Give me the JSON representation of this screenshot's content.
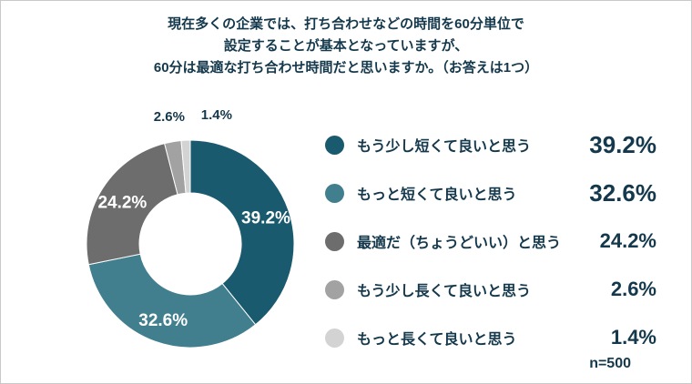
{
  "title": {
    "line1": "現在多くの企業では、打ち合わせなどの時間を60分単位で",
    "line2": "設定することが基本となっていますが、",
    "line3": "60分は最適な打ち合わせ時間だと思いますか。（お答えは1つ）"
  },
  "sample_size": "n=500",
  "chart_data": {
    "type": "pie",
    "donut": true,
    "title": "現在多くの企業では、打ち合わせなどの時間を60分単位で設定することが基本となっていますが、60分は最適な打ち合わせ時間だと思いますか。（お答えは1つ）",
    "categories": [
      "もう少し短くて良いと思う",
      "もっと短くて良いと思う",
      "最適だ（ちょうどいい）と思う",
      "もう少し長くて良いと思う",
      "もっと長くて良いと思う"
    ],
    "values": [
      39.2,
      32.6,
      24.2,
      2.6,
      1.4
    ],
    "unit": "%",
    "colors": [
      "#1a5a6e",
      "#417f8f",
      "#6d6d6d",
      "#a2a2a2",
      "#d3d3d3"
    ],
    "legend_position": "right",
    "sample_size": "n=500",
    "start_angle": "top, clockwise"
  },
  "legend": {
    "items": [
      {
        "label": "もう少し短くて良いと思う",
        "value": "39.2%"
      },
      {
        "label": "もっと短くて良いと思う",
        "value": "32.6%"
      },
      {
        "label": "最適だ（ちょうどいい）と思う",
        "value": "24.2%"
      },
      {
        "label": "もう少し長くて良いと思う",
        "value": "2.6%"
      },
      {
        "label": "もっと長くて良いと思う",
        "value": "1.4%"
      }
    ]
  }
}
